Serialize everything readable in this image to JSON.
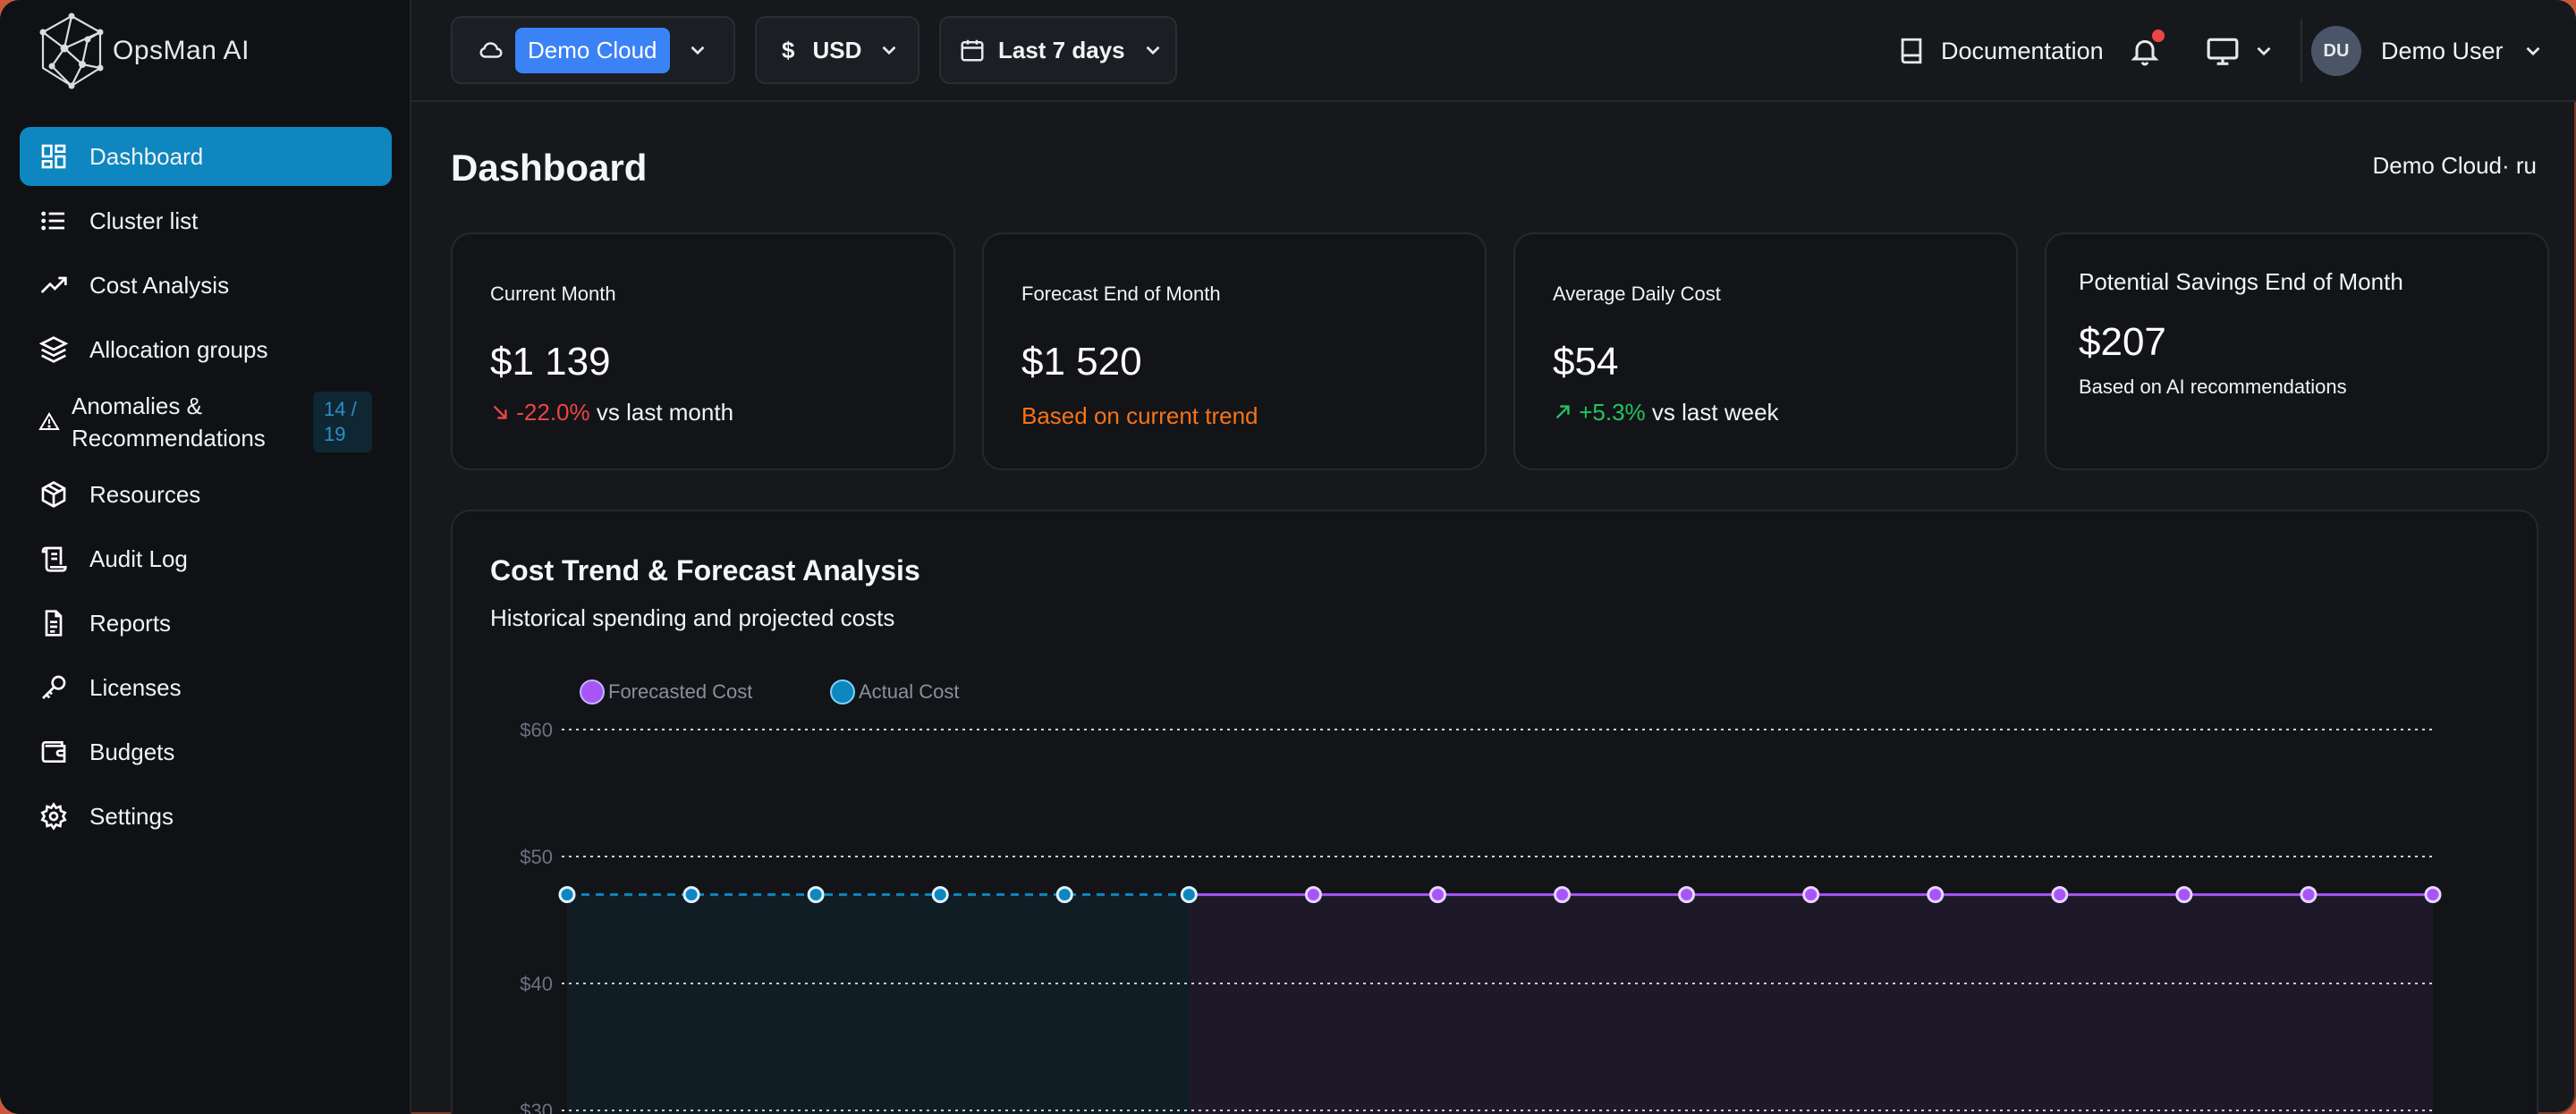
{
  "app": {
    "name": "OpsMan AI"
  },
  "sidebar": {
    "items": [
      {
        "label": "Dashboard",
        "icon": "dashboard-grid-icon",
        "active": true
      },
      {
        "label": "Cluster list",
        "icon": "list-icon"
      },
      {
        "label": "Cost Analysis",
        "icon": "trending-up-icon"
      },
      {
        "label": "Allocation groups",
        "icon": "layers-icon"
      },
      {
        "label": "Anomalies & Recommendations",
        "icon": "alert-triangle-icon",
        "badge": "14 / 19"
      },
      {
        "label": "Resources",
        "icon": "package-icon"
      },
      {
        "label": "Audit Log",
        "icon": "scroll-icon"
      },
      {
        "label": "Reports",
        "icon": "file-text-icon"
      },
      {
        "label": "Licenses",
        "icon": "key-icon"
      },
      {
        "label": "Budgets",
        "icon": "wallet-icon"
      },
      {
        "label": "Settings",
        "icon": "gear-icon"
      }
    ]
  },
  "topbar": {
    "cloud": "Demo Cloud",
    "currency_symbol": "$",
    "currency": "USD",
    "date_range": "Last 7 days",
    "documentation": "Documentation",
    "user_initials": "DU",
    "user_name": "Demo User"
  },
  "page": {
    "title": "Dashboard",
    "context": "Demo Cloud· ru"
  },
  "cards": [
    {
      "title": "Current Month",
      "value": "$1 139",
      "delta": "-22.0%",
      "suffix": "vs last month",
      "delta_color": "#ef4444"
    },
    {
      "title": "Forecast End of Month",
      "value": "$1 520",
      "note": "Based on current trend",
      "note_color": "#f97316"
    },
    {
      "title": "Average Daily Cost",
      "value": "$54",
      "delta": "+5.3%",
      "suffix": "vs last week",
      "delta_color": "#22c55e"
    },
    {
      "title": "Potential Savings End of Month",
      "value": "$207",
      "note": "Based on AI recommendations"
    }
  ],
  "chart": {
    "title": "Cost Trend & Forecast Analysis",
    "subtitle": "Historical spending and projected costs",
    "legend": [
      {
        "label": "Forecasted Cost",
        "color": "#a855f7"
      },
      {
        "label": "Actual Cost",
        "color": "#0e86c0"
      }
    ]
  },
  "chart_data": {
    "type": "line",
    "y_ticks": [
      "$60",
      "$50",
      "$40",
      "$30"
    ],
    "ylim": [
      30,
      60
    ],
    "series": [
      {
        "name": "Actual Cost",
        "color": "#0e86c0",
        "dashed": true,
        "values": [
          47,
          47,
          47,
          47,
          47,
          47
        ]
      },
      {
        "name": "Forecasted Cost",
        "color": "#a855f7",
        "dashed": false,
        "values": [
          47,
          47,
          47,
          47,
          47,
          47,
          47,
          47,
          47,
          47
        ]
      }
    ]
  }
}
